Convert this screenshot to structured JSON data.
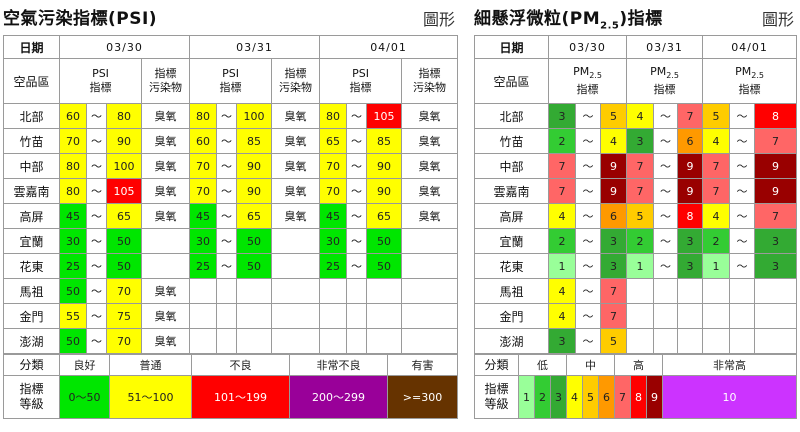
{
  "psi": {
    "title": "空氣污染指標(PSI)",
    "chart_link": "圖形",
    "date_label": "日期",
    "area_label": "空品區",
    "value_header": "PSI\n指標",
    "pollutant_header": "指標\n污染物",
    "dates": [
      "03/30",
      "03/31",
      "04/01"
    ],
    "rows": [
      {
        "area": "北部",
        "days": [
          {
            "lo": "60",
            "lo_c": "y",
            "hi": "80",
            "hi_c": "y",
            "pollutant": "臭氧"
          },
          {
            "lo": "80",
            "lo_c": "y",
            "hi": "100",
            "hi_c": "y",
            "pollutant": "臭氧"
          },
          {
            "lo": "80",
            "lo_c": "y",
            "hi": "105",
            "hi_c": "r",
            "pollutant": "臭氧"
          }
        ]
      },
      {
        "area": "竹苗",
        "days": [
          {
            "lo": "70",
            "lo_c": "y",
            "hi": "90",
            "hi_c": "y",
            "pollutant": "臭氧"
          },
          {
            "lo": "60",
            "lo_c": "y",
            "hi": "85",
            "hi_c": "y",
            "pollutant": "臭氧"
          },
          {
            "lo": "65",
            "lo_c": "y",
            "hi": "85",
            "hi_c": "y",
            "pollutant": "臭氧"
          }
        ]
      },
      {
        "area": "中部",
        "days": [
          {
            "lo": "80",
            "lo_c": "y",
            "hi": "100",
            "hi_c": "y",
            "pollutant": "臭氧"
          },
          {
            "lo": "70",
            "lo_c": "y",
            "hi": "90",
            "hi_c": "y",
            "pollutant": "臭氧"
          },
          {
            "lo": "70",
            "lo_c": "y",
            "hi": "90",
            "hi_c": "y",
            "pollutant": "臭氧"
          }
        ]
      },
      {
        "area": "雲嘉南",
        "days": [
          {
            "lo": "80",
            "lo_c": "y",
            "hi": "105",
            "hi_c": "r",
            "pollutant": "臭氧"
          },
          {
            "lo": "70",
            "lo_c": "y",
            "hi": "90",
            "hi_c": "y",
            "pollutant": "臭氧"
          },
          {
            "lo": "70",
            "lo_c": "y",
            "hi": "90",
            "hi_c": "y",
            "pollutant": "臭氧"
          }
        ]
      },
      {
        "area": "高屏",
        "days": [
          {
            "lo": "45",
            "lo_c": "g",
            "hi": "65",
            "hi_c": "y",
            "pollutant": "臭氧"
          },
          {
            "lo": "45",
            "lo_c": "g",
            "hi": "65",
            "hi_c": "y",
            "pollutant": "臭氧"
          },
          {
            "lo": "45",
            "lo_c": "g",
            "hi": "65",
            "hi_c": "y",
            "pollutant": "臭氧"
          }
        ]
      },
      {
        "area": "宜蘭",
        "days": [
          {
            "lo": "30",
            "lo_c": "g",
            "hi": "50",
            "hi_c": "g",
            "pollutant": ""
          },
          {
            "lo": "30",
            "lo_c": "g",
            "hi": "50",
            "hi_c": "g",
            "pollutant": ""
          },
          {
            "lo": "30",
            "lo_c": "g",
            "hi": "50",
            "hi_c": "g",
            "pollutant": ""
          }
        ]
      },
      {
        "area": "花東",
        "days": [
          {
            "lo": "25",
            "lo_c": "g",
            "hi": "50",
            "hi_c": "g",
            "pollutant": ""
          },
          {
            "lo": "25",
            "lo_c": "g",
            "hi": "50",
            "hi_c": "g",
            "pollutant": ""
          },
          {
            "lo": "25",
            "lo_c": "g",
            "hi": "50",
            "hi_c": "g",
            "pollutant": ""
          }
        ]
      },
      {
        "area": "馬祖",
        "days": [
          {
            "lo": "50",
            "lo_c": "g",
            "hi": "70",
            "hi_c": "y",
            "pollutant": "臭氧"
          },
          null,
          null
        ]
      },
      {
        "area": "金門",
        "days": [
          {
            "lo": "55",
            "lo_c": "y",
            "hi": "75",
            "hi_c": "y",
            "pollutant": "臭氧"
          },
          null,
          null
        ]
      },
      {
        "area": "澎湖",
        "days": [
          {
            "lo": "50",
            "lo_c": "g",
            "hi": "70",
            "hi_c": "y",
            "pollutant": "臭氧"
          },
          null,
          null
        ]
      }
    ],
    "legend": {
      "cat_label": "分類",
      "idx_label": "指標\n等級",
      "items": [
        {
          "name": "良好",
          "range": "0～50",
          "cls": "lg-good"
        },
        {
          "name": "普通",
          "range": "51～100",
          "cls": "lg-mod"
        },
        {
          "name": "不良",
          "range": "101～199",
          "cls": "lg-bad"
        },
        {
          "name": "非常不良",
          "range": "200～299",
          "cls": "lg-vbad"
        },
        {
          "name": "有害",
          "range": ">=300",
          "cls": "lg-haz"
        }
      ]
    }
  },
  "pm": {
    "title_pre": "細懸浮微粒(PM",
    "title_sub": "2.5",
    "title_post": ")指標",
    "chart_link": "圖形",
    "date_label": "日期",
    "area_label": "空品區",
    "hdr_pre": "PM",
    "hdr_sub": "2.5",
    "hdr_post": "指標",
    "dates": [
      "03/30",
      "03/31",
      "04/01"
    ],
    "rows": [
      {
        "area": "北部",
        "days": [
          [
            "3",
            "5"
          ],
          [
            "4",
            "7"
          ],
          [
            "5",
            "8"
          ]
        ]
      },
      {
        "area": "竹苗",
        "days": [
          [
            "2",
            "4"
          ],
          [
            "3",
            "6"
          ],
          [
            "4",
            "7"
          ]
        ]
      },
      {
        "area": "中部",
        "days": [
          [
            "7",
            "9"
          ],
          [
            "7",
            "9"
          ],
          [
            "7",
            "9"
          ]
        ]
      },
      {
        "area": "雲嘉南",
        "days": [
          [
            "7",
            "9"
          ],
          [
            "7",
            "9"
          ],
          [
            "7",
            "9"
          ]
        ]
      },
      {
        "area": "高屏",
        "days": [
          [
            "4",
            "6"
          ],
          [
            "5",
            "8"
          ],
          [
            "4",
            "7"
          ]
        ]
      },
      {
        "area": "宜蘭",
        "days": [
          [
            "2",
            "3"
          ],
          [
            "2",
            "3"
          ],
          [
            "2",
            "3"
          ]
        ]
      },
      {
        "area": "花東",
        "days": [
          [
            "1",
            "3"
          ],
          [
            "1",
            "3"
          ],
          [
            "1",
            "3"
          ]
        ]
      },
      {
        "area": "馬祖",
        "days": [
          [
            "4",
            "7"
          ],
          null,
          null
        ]
      },
      {
        "area": "金門",
        "days": [
          [
            "4",
            "7"
          ],
          null,
          null
        ]
      },
      {
        "area": "澎湖",
        "days": [
          [
            "3",
            "5"
          ],
          null,
          null
        ]
      }
    ],
    "legend": {
      "cat_label": "分類",
      "idx_label": "指標\n等級",
      "groups": [
        {
          "name": "低",
          "levels": [
            "1",
            "2",
            "3"
          ]
        },
        {
          "name": "中",
          "levels": [
            "4",
            "5",
            "6"
          ]
        },
        {
          "name": "高",
          "levels": [
            "7",
            "8",
            "9"
          ]
        },
        {
          "name": "非常高",
          "levels": [
            "10"
          ]
        }
      ]
    }
  },
  "tilde": "～",
  "colors": {
    "good": "#00e600",
    "moderate": "#ffff00",
    "bad": "#ff0000",
    "very_bad": "#990099",
    "hazardous": "#663300",
    "pm_1": "#99ff99",
    "pm_2": "#33cc33",
    "pm_3": "#33aa33",
    "pm_4": "#ffff00",
    "pm_5": "#ffcc00",
    "pm_6": "#ff9900",
    "pm_7": "#ff6666",
    "pm_8": "#ff0000",
    "pm_9": "#990000",
    "pm_10": "#cc33ff"
  }
}
